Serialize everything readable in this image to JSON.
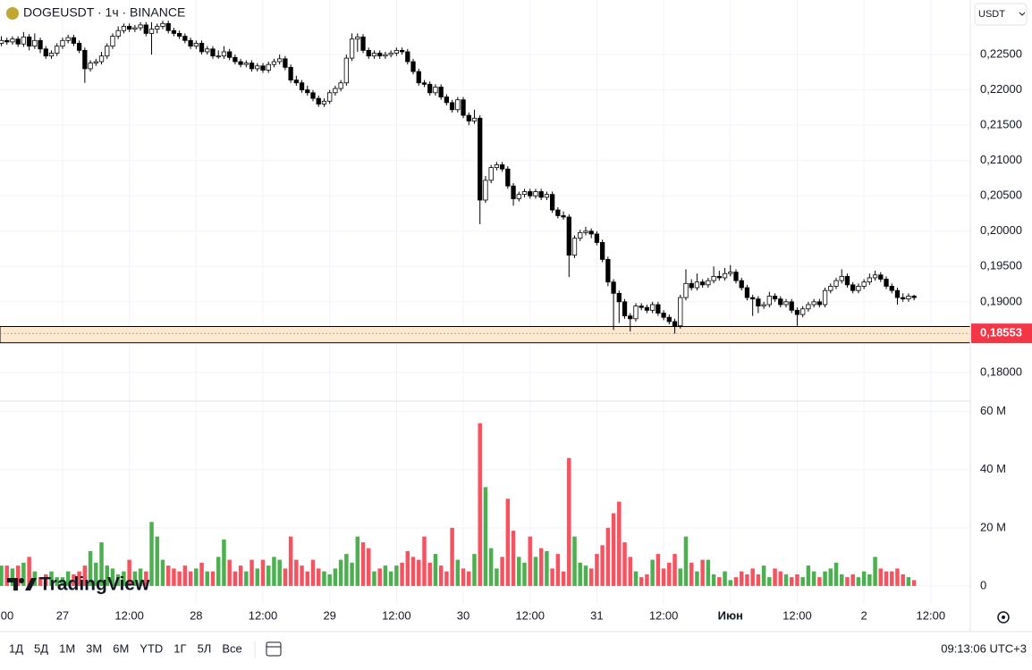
{
  "chart_data": {
    "type": "candlestick",
    "title": "DOGEUSDT · 1ч · BINANCE",
    "currency": "USDT",
    "logo": "TradingView",
    "ranges": [
      "1Д",
      "5Д",
      "1М",
      "3М",
      "6М",
      "YTD",
      "1Г",
      "5Л",
      "Все"
    ],
    "clock": "09:13:06 UTC+3",
    "up_color": "#ffffff",
    "down_color": "#000000",
    "volume_up_color": "#4caf50",
    "volume_down_color": "#f7525f",
    "grid": true,
    "xlim": [
      -0.24,
      174.1
    ],
    "xticks": [
      {
        "value": -1,
        "label": "00"
      },
      {
        "value": 11,
        "label": "27"
      },
      {
        "value": 23,
        "label": "12:00"
      },
      {
        "value": 35,
        "label": "28"
      },
      {
        "value": 47,
        "label": "12:00"
      },
      {
        "value": 59,
        "label": "29"
      },
      {
        "value": 71,
        "label": "12:00"
      },
      {
        "value": 83,
        "label": "30"
      },
      {
        "value": 95,
        "label": "12:00"
      },
      {
        "value": 107,
        "label": "31"
      },
      {
        "value": 119,
        "label": "12:00"
      },
      {
        "value": 131,
        "label": "Июн"
      },
      {
        "value": 143,
        "label": "12:00"
      },
      {
        "value": 155,
        "label": "2"
      },
      {
        "value": 167,
        "label": "12:00"
      }
    ],
    "ylim": [
      0.17594,
      0.23273
    ],
    "yticks": [
      {
        "value": 0.18,
        "label": "0,18000"
      },
      {
        "value": 0.19,
        "label": "0,19000"
      },
      {
        "value": 0.195,
        "label": "0,19500"
      },
      {
        "value": 0.2,
        "label": "0,20000"
      },
      {
        "value": 0.205,
        "label": "0,20500"
      },
      {
        "value": 0.21,
        "label": "0,21000"
      },
      {
        "value": 0.215,
        "label": "0,21500"
      },
      {
        "value": 0.22,
        "label": "0,22000"
      },
      {
        "value": 0.225,
        "label": "0,22500"
      }
    ],
    "price_label": {
      "value": 0.18553,
      "label": "0,18553"
    },
    "zone": [
      0.1842,
      0.1865
    ],
    "volume_ylim": [
      -2.8,
      63.6
    ],
    "volume_yticks": [
      0,
      {
        "value": 20,
        "label": "20 M"
      },
      {
        "value": 40,
        "label": "40 M"
      },
      {
        "value": 60,
        "label": "60 M"
      }
    ],
    "candles": [
      [
        0.2266,
        0.2276,
        0.2262,
        0.227
      ],
      [
        0.227,
        0.2274,
        0.2264,
        0.2268
      ],
      [
        0.2268,
        0.2276,
        0.2264,
        0.2272
      ],
      [
        0.2272,
        0.2276,
        0.2261,
        0.2265
      ],
      [
        0.2265,
        0.2282,
        0.2261,
        0.2275
      ],
      [
        0.2275,
        0.2279,
        0.2256,
        0.2262
      ],
      [
        0.2262,
        0.228,
        0.2258,
        0.227
      ],
      [
        0.227,
        0.2274,
        0.2252,
        0.2258
      ],
      [
        0.2258,
        0.2262,
        0.2244,
        0.2248
      ],
      [
        0.2248,
        0.2256,
        0.2244,
        0.2252
      ],
      [
        0.2252,
        0.2266,
        0.2248,
        0.2262
      ],
      [
        0.2262,
        0.2274,
        0.2258,
        0.227
      ],
      [
        0.227,
        0.2278,
        0.2266,
        0.2274
      ],
      [
        0.2274,
        0.2278,
        0.2262,
        0.2266
      ],
      [
        0.2266,
        0.227,
        0.2252,
        0.2256
      ],
      [
        0.2256,
        0.226,
        0.221,
        0.223
      ],
      [
        0.223,
        0.2242,
        0.2226,
        0.2238
      ],
      [
        0.2238,
        0.2244,
        0.2234,
        0.224
      ],
      [
        0.224,
        0.2254,
        0.2236,
        0.2248
      ],
      [
        0.2248,
        0.2266,
        0.2244,
        0.2262
      ],
      [
        0.2262,
        0.228,
        0.2258,
        0.2276
      ],
      [
        0.2276,
        0.229,
        0.2272,
        0.2284
      ],
      [
        0.2284,
        0.2294,
        0.228,
        0.229
      ],
      [
        0.229,
        0.2294,
        0.2282,
        0.2286
      ],
      [
        0.2286,
        0.2292,
        0.2282,
        0.2288
      ],
      [
        0.2288,
        0.2296,
        0.2284,
        0.2292
      ],
      [
        0.2292,
        0.2296,
        0.2276,
        0.228
      ],
      [
        0.228,
        0.2296,
        0.225,
        0.2286
      ],
      [
        0.2286,
        0.2294,
        0.228,
        0.229
      ],
      [
        0.229,
        0.2298,
        0.2286,
        0.2294
      ],
      [
        0.2294,
        0.2298,
        0.228,
        0.2284
      ],
      [
        0.2284,
        0.2288,
        0.2276,
        0.228
      ],
      [
        0.228,
        0.2284,
        0.2272,
        0.2276
      ],
      [
        0.2276,
        0.228,
        0.2266,
        0.227
      ],
      [
        0.227,
        0.2274,
        0.2258,
        0.2262
      ],
      [
        0.2262,
        0.227,
        0.2258,
        0.2266
      ],
      [
        0.2266,
        0.227,
        0.225,
        0.2254
      ],
      [
        0.2254,
        0.2262,
        0.225,
        0.2258
      ],
      [
        0.2258,
        0.2262,
        0.2244,
        0.2248
      ],
      [
        0.2248,
        0.2256,
        0.2244,
        0.2248
      ],
      [
        0.2248,
        0.2262,
        0.2244,
        0.2254
      ],
      [
        0.2254,
        0.2258,
        0.2242,
        0.2246
      ],
      [
        0.2246,
        0.225,
        0.2236,
        0.224
      ],
      [
        0.224,
        0.2244,
        0.2232,
        0.2236
      ],
      [
        0.2236,
        0.2242,
        0.2232,
        0.2238
      ],
      [
        0.2238,
        0.2242,
        0.2226,
        0.223
      ],
      [
        0.223,
        0.2238,
        0.2226,
        0.2234
      ],
      [
        0.2234,
        0.2238,
        0.2224,
        0.2228
      ],
      [
        0.2228,
        0.224,
        0.2224,
        0.2236
      ],
      [
        0.2236,
        0.2244,
        0.2232,
        0.224
      ],
      [
        0.224,
        0.225,
        0.2236,
        0.2244
      ],
      [
        0.2244,
        0.2248,
        0.2228,
        0.2232
      ],
      [
        0.2232,
        0.2236,
        0.221,
        0.2214
      ],
      [
        0.2214,
        0.222,
        0.2206,
        0.221
      ],
      [
        0.221,
        0.2214,
        0.2196,
        0.22
      ],
      [
        0.22,
        0.2206,
        0.2192,
        0.2196
      ],
      [
        0.2196,
        0.22,
        0.2184,
        0.2188
      ],
      [
        0.2188,
        0.2192,
        0.2176,
        0.218
      ],
      [
        0.218,
        0.2188,
        0.2176,
        0.2184
      ],
      [
        0.2184,
        0.22,
        0.218,
        0.2196
      ],
      [
        0.2196,
        0.2206,
        0.2192,
        0.2202
      ],
      [
        0.2202,
        0.2214,
        0.2198,
        0.221
      ],
      [
        0.221,
        0.225,
        0.2206,
        0.2245
      ],
      [
        0.2245,
        0.228,
        0.2241,
        0.2272
      ],
      [
        0.2272,
        0.228,
        0.2254,
        0.2275
      ],
      [
        0.2275,
        0.2279,
        0.2252,
        0.2256
      ],
      [
        0.2256,
        0.226,
        0.2244,
        0.2248
      ],
      [
        0.2248,
        0.2256,
        0.2244,
        0.2252
      ],
      [
        0.2252,
        0.2256,
        0.2244,
        0.2248
      ],
      [
        0.2248,
        0.2254,
        0.2244,
        0.225
      ],
      [
        0.225,
        0.2256,
        0.2246,
        0.2252
      ],
      [
        0.2252,
        0.226,
        0.2248,
        0.2256
      ],
      [
        0.2256,
        0.226,
        0.225,
        0.2254
      ],
      [
        0.2254,
        0.2258,
        0.2236,
        0.224
      ],
      [
        0.224,
        0.2244,
        0.2222,
        0.2226
      ],
      [
        0.2226,
        0.223,
        0.2206,
        0.221
      ],
      [
        0.221,
        0.2214,
        0.2204,
        0.2208
      ],
      [
        0.2208,
        0.2212,
        0.2192,
        0.2196
      ],
      [
        0.2196,
        0.2208,
        0.2192,
        0.2204
      ],
      [
        0.2204,
        0.2208,
        0.2186,
        0.219
      ],
      [
        0.219,
        0.2194,
        0.2178,
        0.2182
      ],
      [
        0.2182,
        0.2186,
        0.2168,
        0.2172
      ],
      [
        0.2172,
        0.219,
        0.2168,
        0.2186
      ],
      [
        0.2186,
        0.219,
        0.216,
        0.2164
      ],
      [
        0.2164,
        0.2168,
        0.215,
        0.2156
      ],
      [
        0.2156,
        0.2172,
        0.2152,
        0.216
      ],
      [
        0.216,
        0.2164,
        0.201,
        0.2044
      ],
      [
        0.2044,
        0.2078,
        0.204,
        0.2072
      ],
      [
        0.2072,
        0.2094,
        0.2068,
        0.209
      ],
      [
        0.209,
        0.2098,
        0.2086,
        0.2094
      ],
      [
        0.2094,
        0.2098,
        0.2084,
        0.2088
      ],
      [
        0.2088,
        0.2092,
        0.206,
        0.2064
      ],
      [
        0.2064,
        0.2068,
        0.2036,
        0.2046
      ],
      [
        0.2046,
        0.2056,
        0.2042,
        0.2052
      ],
      [
        0.2052,
        0.206,
        0.2048,
        0.2056
      ],
      [
        0.2056,
        0.206,
        0.2046,
        0.205
      ],
      [
        0.205,
        0.206,
        0.2046,
        0.2056
      ],
      [
        0.2056,
        0.206,
        0.2044,
        0.2048
      ],
      [
        0.2048,
        0.2056,
        0.2044,
        0.2052
      ],
      [
        0.2052,
        0.2056,
        0.2026,
        0.203
      ],
      [
        0.203,
        0.2034,
        0.2018,
        0.2022
      ],
      [
        0.2022,
        0.2028,
        0.2016,
        0.202
      ],
      [
        0.202,
        0.2024,
        0.1935,
        0.1966
      ],
      [
        0.1966,
        0.1994,
        0.1962,
        0.199
      ],
      [
        0.199,
        0.2002,
        0.1986,
        0.1998
      ],
      [
        0.1998,
        0.2006,
        0.1994,
        0.2
      ],
      [
        0.2,
        0.2004,
        0.199,
        0.1996
      ],
      [
        0.1996,
        0.2,
        0.198,
        0.1984
      ],
      [
        0.1984,
        0.1988,
        0.1956,
        0.196
      ],
      [
        0.196,
        0.1964,
        0.1922,
        0.1928
      ],
      [
        0.1928,
        0.1932,
        0.186,
        0.1912
      ],
      [
        0.1912,
        0.1916,
        0.187,
        0.19
      ],
      [
        0.19,
        0.1904,
        0.1876,
        0.188
      ],
      [
        0.188,
        0.1884,
        0.1858,
        0.1876
      ],
      [
        0.1876,
        0.1898,
        0.1872,
        0.1894
      ],
      [
        0.1894,
        0.1898,
        0.1888,
        0.1892
      ],
      [
        0.1892,
        0.1896,
        0.1884,
        0.1888
      ],
      [
        0.1888,
        0.19,
        0.1884,
        0.1896
      ],
      [
        0.1896,
        0.19,
        0.188,
        0.1884
      ],
      [
        0.1884,
        0.1888,
        0.1874,
        0.1878
      ],
      [
        0.1878,
        0.1882,
        0.1868,
        0.1872
      ],
      [
        0.1872,
        0.1876,
        0.1855,
        0.1866
      ],
      [
        0.1866,
        0.191,
        0.1862,
        0.1906
      ],
      [
        0.1906,
        0.1946,
        0.1902,
        0.1926
      ],
      [
        0.1926,
        0.1932,
        0.1916,
        0.192
      ],
      [
        0.192,
        0.194,
        0.1916,
        0.1928
      ],
      [
        0.1928,
        0.1932,
        0.192,
        0.1924
      ],
      [
        0.1924,
        0.1934,
        0.192,
        0.193
      ],
      [
        0.193,
        0.195,
        0.1926,
        0.1936
      ],
      [
        0.1936,
        0.1944,
        0.193,
        0.1934
      ],
      [
        0.1934,
        0.1948,
        0.193,
        0.194
      ],
      [
        0.194,
        0.1952,
        0.1936,
        0.1942
      ],
      [
        0.1942,
        0.1946,
        0.1926,
        0.193
      ],
      [
        0.193,
        0.1934,
        0.1916,
        0.192
      ],
      [
        0.192,
        0.1924,
        0.1902,
        0.1906
      ],
      [
        0.1906,
        0.191,
        0.188,
        0.1904
      ],
      [
        0.1904,
        0.1908,
        0.1884,
        0.1894
      ],
      [
        0.1894,
        0.19,
        0.189,
        0.1896
      ],
      [
        0.1896,
        0.1914,
        0.1892,
        0.1908
      ],
      [
        0.1908,
        0.1912,
        0.19,
        0.1904
      ],
      [
        0.1904,
        0.1908,
        0.1892,
        0.1896
      ],
      [
        0.1896,
        0.1904,
        0.1892,
        0.19
      ],
      [
        0.19,
        0.1904,
        0.1884,
        0.1888
      ],
      [
        0.1888,
        0.1892,
        0.1866,
        0.1882
      ],
      [
        0.1882,
        0.1894,
        0.1878,
        0.189
      ],
      [
        0.189,
        0.19,
        0.1886,
        0.1896
      ],
      [
        0.1896,
        0.1904,
        0.1892,
        0.19
      ],
      [
        0.19,
        0.1904,
        0.1892,
        0.1896
      ],
      [
        0.1896,
        0.192,
        0.1892,
        0.1916
      ],
      [
        0.1916,
        0.1926,
        0.1912,
        0.1922
      ],
      [
        0.1922,
        0.1934,
        0.1918,
        0.193
      ],
      [
        0.193,
        0.1946,
        0.1926,
        0.1936
      ],
      [
        0.1936,
        0.194,
        0.192,
        0.1924
      ],
      [
        0.1924,
        0.1928,
        0.1912,
        0.1916
      ],
      [
        0.1916,
        0.1926,
        0.1912,
        0.1922
      ],
      [
        0.1922,
        0.1932,
        0.1918,
        0.1928
      ],
      [
        0.1928,
        0.194,
        0.1924,
        0.1934
      ],
      [
        0.1934,
        0.1944,
        0.193,
        0.1938
      ],
      [
        0.1938,
        0.1942,
        0.1928,
        0.1932
      ],
      [
        0.1932,
        0.1936,
        0.1918,
        0.1922
      ],
      [
        0.1922,
        0.1926,
        0.1912,
        0.1916
      ],
      [
        0.1916,
        0.192,
        0.1896,
        0.1906
      ],
      [
        0.1906,
        0.1912,
        0.19,
        0.1904
      ],
      [
        0.1904,
        0.1912,
        0.19,
        0.1908
      ],
      [
        0.1908,
        0.191,
        0.1902,
        0.1906
      ]
    ],
    "volume": [
      7,
      7,
      6,
      7,
      8,
      10,
      5,
      3,
      4,
      5,
      3,
      3,
      5,
      4,
      5,
      7,
      12,
      8,
      15,
      7,
      6,
      4,
      5,
      9,
      5,
      6,
      5,
      22,
      17,
      9,
      7,
      6,
      5,
      7,
      5,
      6,
      8,
      5,
      5,
      10,
      16,
      9,
      5,
      7,
      5,
      9,
      6,
      9,
      7,
      10,
      9,
      6,
      17,
      9,
      7,
      5,
      9,
      6,
      5,
      4,
      6,
      9,
      11,
      8,
      17,
      15,
      13,
      5,
      6,
      7,
      5,
      7,
      8,
      12,
      10,
      9,
      17,
      8,
      11,
      7,
      5,
      20,
      9,
      6,
      5,
      11,
      56,
      34,
      13,
      6,
      10,
      30,
      19,
      10,
      8,
      17,
      10,
      13,
      12,
      6,
      11,
      5,
      44,
      17,
      8,
      7,
      6,
      11,
      14,
      20,
      25,
      29,
      15,
      10,
      5,
      3,
      4,
      9,
      11,
      6,
      8,
      11,
      6,
      17,
      8,
      5,
      9,
      9,
      4,
      3,
      5,
      2,
      3,
      5,
      4,
      6,
      4,
      7,
      3,
      6,
      5,
      4,
      3,
      4,
      3,
      7,
      5,
      3,
      5,
      6,
      8,
      4,
      3,
      4,
      3,
      5,
      4,
      10,
      6,
      5,
      5,
      6,
      4,
      3,
      2
    ]
  }
}
